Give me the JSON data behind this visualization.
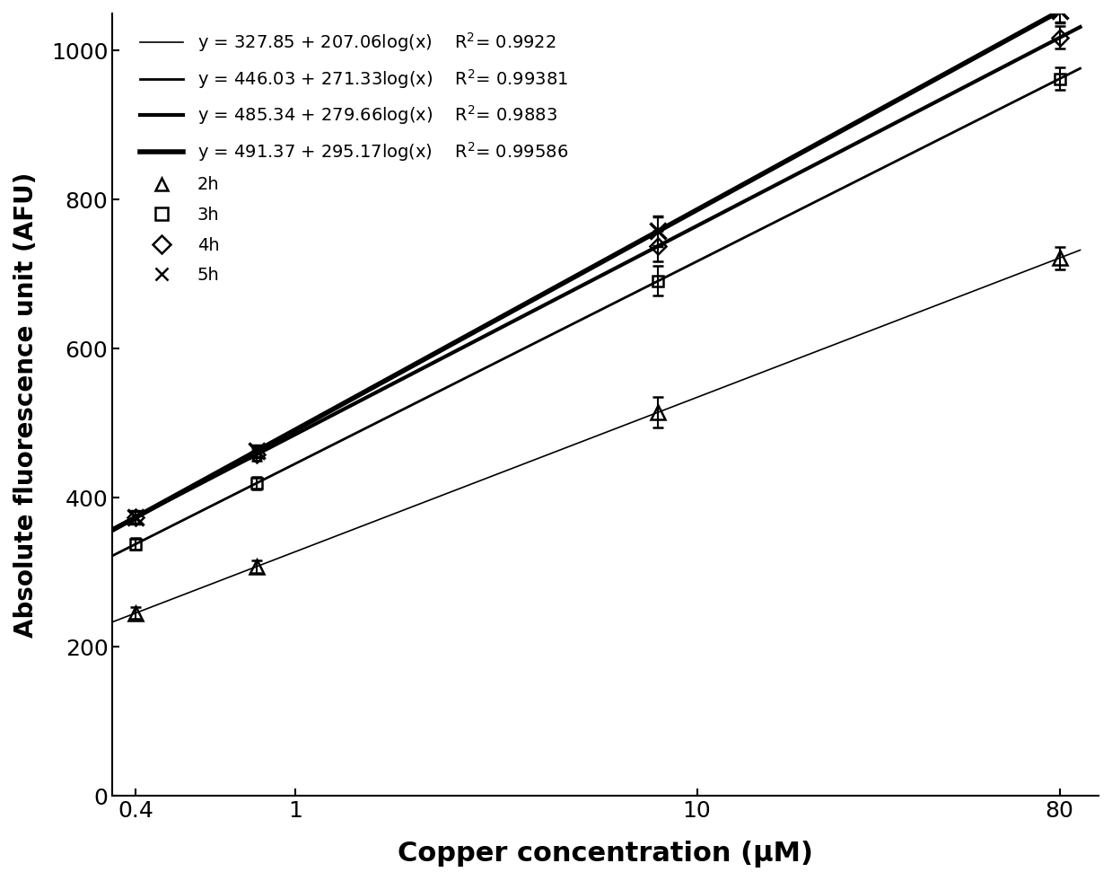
{
  "series": [
    {
      "label": "2h",
      "marker": "^",
      "intercept": 327.85,
      "slope": 207.06,
      "r2": "0.9922",
      "line_color": "#000000",
      "line_width": 1.2,
      "data_x": [
        0.4,
        0.8,
        8,
        80
      ],
      "error_y": [
        8,
        8,
        20,
        15
      ]
    },
    {
      "label": "3h",
      "marker": "s",
      "intercept": 446.03,
      "slope": 271.33,
      "r2": "0.99381",
      "line_color": "#000000",
      "line_width": 2.0,
      "data_x": [
        0.4,
        0.8,
        8,
        80
      ],
      "error_y": [
        8,
        8,
        20,
        15
      ]
    },
    {
      "label": "4h",
      "marker": "D",
      "intercept": 485.34,
      "slope": 279.66,
      "r2": "0.9883",
      "line_color": "#000000",
      "line_width": 3.0,
      "data_x": [
        0.4,
        0.8,
        8,
        80
      ],
      "error_y": [
        8,
        8,
        20,
        15
      ]
    },
    {
      "label": "5h",
      "marker": "x",
      "intercept": 491.37,
      "slope": 295.17,
      "r2": "0.99586",
      "line_color": "#000000",
      "line_width": 4.0,
      "data_x": [
        0.4,
        0.8,
        8,
        80
      ],
      "error_y": [
        8,
        8,
        20,
        15
      ]
    }
  ],
  "xlabel": "Copper concentration (μM)",
  "ylabel": "Absolute fluorescence unit (AFU)",
  "xlim": [
    0.35,
    100
  ],
  "ylim": [
    0,
    1050
  ],
  "yticks": [
    0,
    200,
    400,
    600,
    800,
    1000
  ],
  "background_color": "#ffffff"
}
